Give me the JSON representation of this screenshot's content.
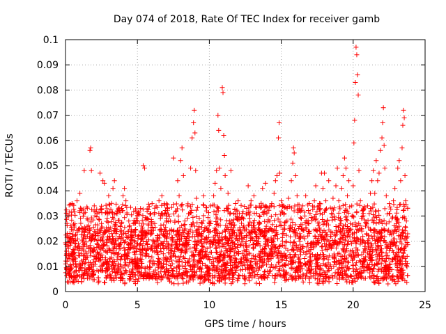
{
  "chart_data": {
    "type": "scatter",
    "title": "Day 074 of 2018, Rate Of TEC Index for receiver gamb",
    "xlabel": "GPS time / hours",
    "ylabel": "ROTI / TECUs",
    "xlim": [
      0,
      25
    ],
    "ylim": [
      0,
      0.1
    ],
    "xticks": [
      0,
      5,
      10,
      15,
      20,
      25
    ],
    "xtick_labels": [
      "0",
      "5",
      "10",
      "15",
      "20",
      "25"
    ],
    "yticks": [
      0,
      0.01,
      0.02,
      0.03,
      0.04,
      0.05,
      0.06,
      0.07,
      0.08,
      0.09,
      0.1
    ],
    "ytick_labels": [
      "0",
      "0.01",
      "0.02",
      "0.03",
      "0.04",
      "0.05",
      "0.06",
      "0.07",
      "0.08",
      "0.09",
      "0.1"
    ],
    "grid": true,
    "marker": "+",
    "color": "#ff0000",
    "series": [
      {
        "name": "ROTI",
        "points": [
          [
            0.1,
            0.012
          ],
          [
            0.2,
            0.018
          ],
          [
            0.3,
            0.009
          ],
          [
            0.4,
            0.021
          ],
          [
            0.5,
            0.014
          ],
          [
            0.6,
            0.026
          ],
          [
            0.7,
            0.011
          ],
          [
            0.8,
            0.036
          ],
          [
            0.9,
            0.019
          ],
          [
            1.0,
            0.039
          ],
          [
            1.1,
            0.015
          ],
          [
            1.2,
            0.024
          ],
          [
            1.3,
            0.048
          ],
          [
            1.4,
            0.013
          ],
          [
            1.5,
            0.029
          ],
          [
            1.6,
            0.017
          ],
          [
            1.7,
            0.056
          ],
          [
            1.75,
            0.057
          ],
          [
            1.8,
            0.048
          ],
          [
            1.9,
            0.022
          ],
          [
            2.0,
            0.034
          ],
          [
            2.1,
            0.012
          ],
          [
            2.2,
            0.031
          ],
          [
            2.3,
            0.018
          ],
          [
            2.4,
            0.047
          ],
          [
            2.5,
            0.027
          ],
          [
            2.6,
            0.044
          ],
          [
            2.7,
            0.043
          ],
          [
            2.8,
            0.016
          ],
          [
            2.9,
            0.029
          ],
          [
            3.0,
            0.038
          ],
          [
            3.1,
            0.013
          ],
          [
            3.2,
            0.035
          ],
          [
            3.3,
            0.041
          ],
          [
            3.4,
            0.044
          ],
          [
            3.5,
            0.021
          ],
          [
            3.6,
            0.032
          ],
          [
            3.7,
            0.011
          ],
          [
            3.8,
            0.026
          ],
          [
            3.9,
            0.033
          ],
          [
            4.0,
            0.038
          ],
          [
            4.1,
            0.041
          ],
          [
            4.2,
            0.036
          ],
          [
            4.3,
            0.015
          ],
          [
            4.4,
            0.028
          ],
          [
            4.5,
            0.019
          ],
          [
            4.6,
            0.024
          ],
          [
            4.7,
            0.012
          ],
          [
            4.8,
            0.027
          ],
          [
            4.9,
            0.017
          ],
          [
            5.0,
            0.031
          ],
          [
            5.1,
            0.022
          ],
          [
            5.2,
            0.013
          ],
          [
            5.3,
            0.026
          ],
          [
            5.4,
            0.05
          ],
          [
            5.5,
            0.049
          ],
          [
            5.6,
            0.019
          ],
          [
            5.7,
            0.029
          ],
          [
            5.8,
            0.014
          ],
          [
            5.9,
            0.031
          ],
          [
            6.0,
            0.023
          ],
          [
            6.1,
            0.011
          ],
          [
            6.2,
            0.027
          ],
          [
            6.3,
            0.034
          ],
          [
            6.4,
            0.018
          ],
          [
            6.5,
            0.036
          ],
          [
            6.6,
            0.029
          ],
          [
            6.7,
            0.038
          ],
          [
            6.8,
            0.015
          ],
          [
            6.9,
            0.031
          ],
          [
            7.0,
            0.024
          ],
          [
            7.1,
            0.033
          ],
          [
            7.2,
            0.012
          ],
          [
            7.3,
            0.028
          ],
          [
            7.4,
            0.021
          ],
          [
            7.5,
            0.053
          ],
          [
            7.6,
            0.017
          ],
          [
            7.7,
            0.032
          ],
          [
            7.8,
            0.044
          ],
          [
            7.9,
            0.038
          ],
          [
            8.0,
            0.052
          ],
          [
            8.1,
            0.057
          ],
          [
            8.2,
            0.046
          ],
          [
            8.3,
            0.028
          ],
          [
            8.4,
            0.019
          ],
          [
            8.5,
            0.034
          ],
          [
            8.6,
            0.013
          ],
          [
            8.7,
            0.049
          ],
          [
            8.8,
            0.061
          ],
          [
            8.9,
            0.067
          ],
          [
            8.95,
            0.072
          ],
          [
            9.0,
            0.063
          ],
          [
            9.05,
            0.048
          ],
          [
            9.1,
            0.037
          ],
          [
            9.2,
            0.022
          ],
          [
            9.3,
            0.029
          ],
          [
            9.4,
            0.016
          ],
          [
            9.5,
            0.027
          ],
          [
            9.6,
            0.038
          ],
          [
            9.7,
            0.021
          ],
          [
            9.8,
            0.032
          ],
          [
            9.9,
            0.013
          ],
          [
            10.0,
            0.027
          ],
          [
            10.1,
            0.034
          ],
          [
            10.2,
            0.019
          ],
          [
            10.3,
            0.038
          ],
          [
            10.4,
            0.043
          ],
          [
            10.5,
            0.048
          ],
          [
            10.6,
            0.07
          ],
          [
            10.65,
            0.064
          ],
          [
            10.7,
            0.049
          ],
          [
            10.8,
            0.041
          ],
          [
            10.9,
            0.081
          ],
          [
            10.95,
            0.079
          ],
          [
            11.0,
            0.062
          ],
          [
            11.05,
            0.054
          ],
          [
            11.1,
            0.046
          ],
          [
            11.2,
            0.033
          ],
          [
            11.3,
            0.039
          ],
          [
            11.4,
            0.028
          ],
          [
            11.5,
            0.048
          ],
          [
            11.6,
            0.024
          ],
          [
            11.7,
            0.031
          ],
          [
            11.8,
            0.017
          ],
          [
            11.9,
            0.029
          ],
          [
            12.0,
            0.036
          ],
          [
            12.1,
            0.022
          ],
          [
            12.2,
            0.013
          ],
          [
            12.3,
            0.031
          ],
          [
            12.4,
            0.026
          ],
          [
            12.5,
            0.019
          ],
          [
            12.6,
            0.033
          ],
          [
            12.7,
            0.042
          ],
          [
            12.8,
            0.029
          ],
          [
            12.9,
            0.036
          ],
          [
            13.0,
            0.021
          ],
          [
            13.1,
            0.038
          ],
          [
            13.2,
            0.014
          ],
          [
            13.3,
            0.031
          ],
          [
            13.4,
            0.019
          ],
          [
            13.5,
            0.027
          ],
          [
            13.6,
            0.035
          ],
          [
            13.7,
            0.041
          ],
          [
            13.8,
            0.022
          ],
          [
            13.9,
            0.043
          ],
          [
            14.0,
            0.031
          ],
          [
            14.1,
            0.012
          ],
          [
            14.2,
            0.028
          ],
          [
            14.3,
            0.034
          ],
          [
            14.4,
            0.018
          ],
          [
            14.5,
            0.039
          ],
          [
            14.6,
            0.044
          ],
          [
            14.7,
            0.046
          ],
          [
            14.8,
            0.061
          ],
          [
            14.85,
            0.067
          ],
          [
            14.9,
            0.047
          ],
          [
            15.0,
            0.036
          ],
          [
            15.1,
            0.023
          ],
          [
            15.2,
            0.031
          ],
          [
            15.3,
            0.014
          ],
          [
            15.4,
            0.028
          ],
          [
            15.5,
            0.037
          ],
          [
            15.6,
            0.025
          ],
          [
            15.7,
            0.044
          ],
          [
            15.8,
            0.051
          ],
          [
            15.85,
            0.057
          ],
          [
            15.9,
            0.055
          ],
          [
            16.0,
            0.046
          ],
          [
            16.1,
            0.038
          ],
          [
            16.2,
            0.025
          ],
          [
            16.3,
            0.016
          ],
          [
            16.4,
            0.029
          ],
          [
            16.5,
            0.034
          ],
          [
            16.6,
            0.021
          ],
          [
            16.7,
            0.038
          ],
          [
            16.8,
            0.027
          ],
          [
            16.9,
            0.012
          ],
          [
            17.0,
            0.031
          ],
          [
            17.1,
            0.019
          ],
          [
            17.2,
            0.029
          ],
          [
            17.3,
            0.036
          ],
          [
            17.4,
            0.042
          ],
          [
            17.5,
            0.024
          ],
          [
            17.6,
            0.034
          ],
          [
            17.7,
            0.031
          ],
          [
            17.8,
            0.047
          ],
          [
            17.9,
            0.041
          ],
          [
            18.0,
            0.047
          ],
          [
            18.1,
            0.036
          ],
          [
            18.2,
            0.028
          ],
          [
            18.3,
            0.044
          ],
          [
            18.4,
            0.019
          ],
          [
            18.5,
            0.031
          ],
          [
            18.6,
            0.037
          ],
          [
            18.7,
            0.013
          ],
          [
            18.8,
            0.042
          ],
          [
            18.9,
            0.049
          ],
          [
            19.0,
            0.036
          ],
          [
            19.1,
            0.021
          ],
          [
            19.2,
            0.041
          ],
          [
            19.3,
            0.046
          ],
          [
            19.4,
            0.053
          ],
          [
            19.5,
            0.049
          ],
          [
            19.6,
            0.038
          ],
          [
            19.7,
            0.044
          ],
          [
            19.8,
            0.027
          ],
          [
            19.9,
            0.034
          ],
          [
            20.0,
            0.042
          ],
          [
            20.05,
            0.059
          ],
          [
            20.1,
            0.068
          ],
          [
            20.15,
            0.083
          ],
          [
            20.2,
            0.097
          ],
          [
            20.25,
            0.094
          ],
          [
            20.3,
            0.086
          ],
          [
            20.35,
            0.078
          ],
          [
            20.4,
            0.048
          ],
          [
            20.5,
            0.036
          ],
          [
            20.6,
            0.024
          ],
          [
            20.7,
            0.031
          ],
          [
            20.8,
            0.017
          ],
          [
            20.9,
            0.027
          ],
          [
            21.0,
            0.034
          ],
          [
            21.1,
            0.021
          ],
          [
            21.2,
            0.039
          ],
          [
            21.3,
            0.044
          ],
          [
            21.4,
            0.048
          ],
          [
            21.5,
            0.039
          ],
          [
            21.6,
            0.052
          ],
          [
            21.7,
            0.044
          ],
          [
            21.8,
            0.047
          ],
          [
            21.9,
            0.056
          ],
          [
            22.0,
            0.061
          ],
          [
            22.05,
            0.067
          ],
          [
            22.1,
            0.073
          ],
          [
            22.15,
            0.058
          ],
          [
            22.2,
            0.049
          ],
          [
            22.3,
            0.038
          ],
          [
            22.4,
            0.024
          ],
          [
            22.5,
            0.031
          ],
          [
            22.6,
            0.018
          ],
          [
            22.7,
            0.029
          ],
          [
            22.8,
            0.036
          ],
          [
            22.9,
            0.041
          ],
          [
            23.0,
            0.027
          ],
          [
            23.1,
            0.049
          ],
          [
            23.2,
            0.052
          ],
          [
            23.3,
            0.044
          ],
          [
            23.4,
            0.057
          ],
          [
            23.45,
            0.066
          ],
          [
            23.5,
            0.072
          ],
          [
            23.55,
            0.069
          ],
          [
            23.6,
            0.046
          ],
          [
            23.65,
            0.036
          ],
          [
            23.7,
            0.028
          ],
          [
            23.75,
            0.014
          ]
        ]
      }
    ],
    "background_density": {
      "description": "dense cloud of ROTI values spanning the full day",
      "x_range": [
        0,
        23.8
      ],
      "y_floor": 0.003,
      "typical_range": [
        0.005,
        0.025
      ],
      "count": 3200
    }
  }
}
